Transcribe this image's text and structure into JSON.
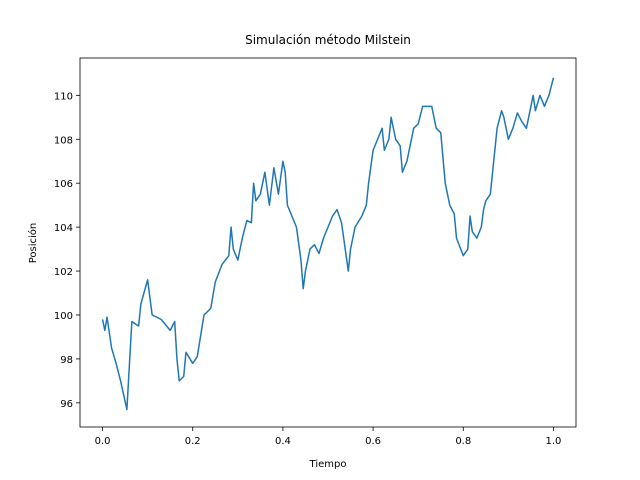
{
  "chart_data": {
    "type": "line",
    "title": "Simulación método Milstein",
    "xlabel": "Tiempo",
    "ylabel": "Posición",
    "xlim": [
      -0.05,
      1.05
    ],
    "ylim": [
      94.9,
      111.7
    ],
    "xticks": [
      {
        "value": 0,
        "label": "0.0"
      },
      0.2,
      0.4,
      0.6,
      0.8,
      {
        "value": 1,
        "label": "1.0"
      }
    ],
    "yticks": [
      96,
      98,
      100,
      102,
      104,
      106,
      108,
      110
    ],
    "x": [
      0,
      0.005,
      0.01,
      0.02,
      0.03,
      0.04,
      0.054,
      0.065,
      0.08,
      0.085,
      0.1,
      0.11,
      0.13,
      0.15,
      0.16,
      0.165,
      0.17,
      0.18,
      0.185,
      0.2,
      0.21,
      0.225,
      0.24,
      0.25,
      0.265,
      0.28,
      0.285,
      0.29,
      0.3,
      0.31,
      0.32,
      0.33,
      0.335,
      0.34,
      0.35,
      0.36,
      0.37,
      0.38,
      0.39,
      0.4,
      0.405,
      0.41,
      0.42,
      0.43,
      0.44,
      0.445,
      0.45,
      0.46,
      0.47,
      0.48,
      0.49,
      0.5,
      0.51,
      0.52,
      0.53,
      0.545,
      0.55,
      0.56,
      0.575,
      0.585,
      0.59,
      0.6,
      0.61,
      0.62,
      0.625,
      0.635,
      0.64,
      0.65,
      0.66,
      0.665,
      0.675,
      0.68,
      0.69,
      0.7,
      0.71,
      0.73,
      0.74,
      0.75,
      0.76,
      0.77,
      0.78,
      0.785,
      0.8,
      0.81,
      0.815,
      0.82,
      0.83,
      0.84,
      0.845,
      0.85,
      0.86,
      0.865,
      0.875,
      0.885,
      0.89,
      0.9,
      0.91,
      0.92,
      0.93,
      0.94,
      0.95,
      0.955,
      0.96,
      0.97,
      0.98,
      0.99,
      1.0
    ],
    "series": [
      {
        "name": "Posición",
        "color": "#1f77b4",
        "values": [
          99.8,
          99.3,
          99.9,
          98.5,
          97.8,
          97.0,
          95.7,
          99.7,
          99.5,
          100.5,
          101.6,
          100.0,
          99.8,
          99.3,
          99.7,
          98.0,
          97.0,
          97.2,
          98.3,
          97.8,
          98.1,
          100.0,
          100.3,
          101.5,
          102.3,
          102.7,
          104.0,
          103.0,
          102.5,
          103.5,
          104.3,
          104.2,
          106.0,
          105.2,
          105.5,
          106.5,
          105.0,
          106.7,
          105.5,
          107.0,
          106.5,
          105.0,
          104.5,
          104.0,
          102.5,
          101.2,
          102.0,
          103.0,
          103.2,
          102.8,
          103.5,
          104.0,
          104.5,
          104.8,
          104.2,
          102.0,
          103.0,
          104.0,
          104.5,
          105.0,
          106.0,
          107.5,
          108.0,
          108.5,
          107.5,
          108.0,
          109.0,
          108.0,
          107.7,
          106.5,
          107.0,
          107.5,
          108.5,
          108.7,
          109.5,
          109.5,
          108.5,
          108.3,
          106.0,
          105.0,
          104.6,
          103.5,
          102.7,
          103.0,
          104.5,
          103.8,
          103.5,
          104.0,
          104.8,
          105.2,
          105.5,
          106.5,
          108.5,
          109.3,
          109.0,
          108.0,
          108.5,
          109.2,
          108.8,
          108.5,
          109.5,
          110.0,
          109.3,
          110.0,
          109.5,
          110.0,
          110.8
        ]
      }
    ]
  }
}
